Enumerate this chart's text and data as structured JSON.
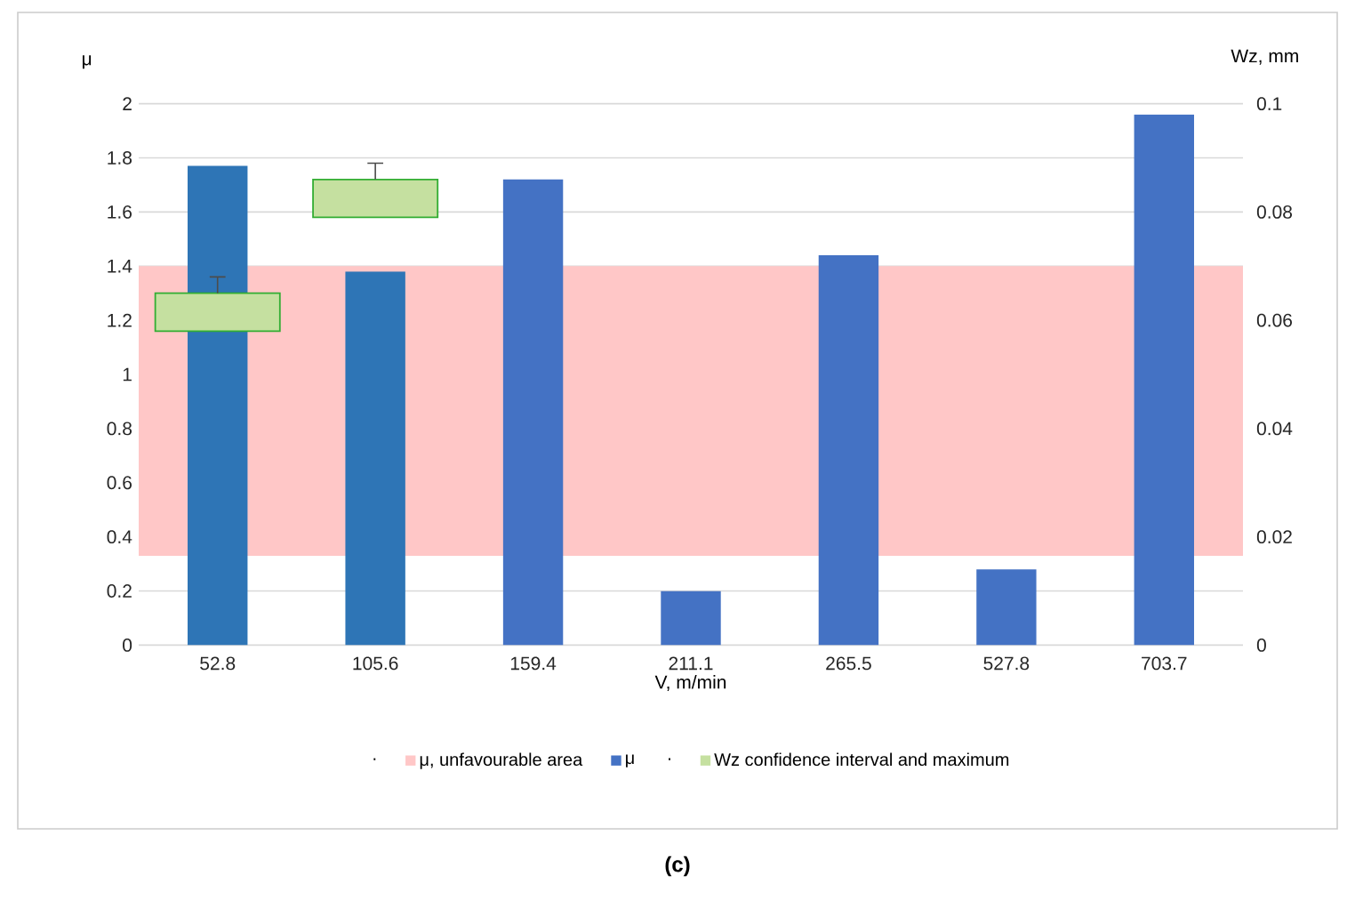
{
  "chart_data": {
    "type": "bar",
    "categories": [
      "52.8",
      "105.6",
      "159.4",
      "211.1",
      "265.5",
      "527.8",
      "703.7"
    ],
    "xlabel": "V, m/min",
    "ylabel": "μ",
    "y2label": "Wz, mm",
    "ylim": [
      0,
      2
    ],
    "yticks": [
      0,
      0.2,
      0.4,
      0.6,
      0.8,
      1,
      1.2,
      1.4,
      1.6,
      1.8,
      2
    ],
    "y2lim": [
      0,
      0.1
    ],
    "y2ticks": [
      0,
      0.02,
      0.04,
      0.06,
      0.08,
      0.1
    ],
    "grid": "y",
    "legend": "bottom",
    "bands": [
      {
        "axis": "y",
        "from": 0.33,
        "to": 1.4,
        "label": "μ, unfavourable area",
        "color": "#ffc7c7"
      }
    ],
    "series": [
      {
        "name": "μ",
        "color": "#4472c4",
        "colors": [
          "#2e75b6",
          "#2e75b6",
          "#4472c4",
          "#4472c4",
          "#4472c4",
          "#4472c4",
          "#4472c4"
        ],
        "values": [
          1.77,
          1.38,
          1.72,
          0.2,
          1.44,
          0.28,
          1.96
        ]
      },
      {
        "name": "Wz confidence interval and maximum",
        "type": "bar",
        "axis": "y2",
        "color": "#c5e0a0",
        "base": [
          0.058,
          0.079,
          null,
          null,
          null,
          null,
          null
        ],
        "values": [
          0.007,
          0.007,
          null,
          null,
          null,
          null,
          null
        ],
        "errors": [
          [
            0.065,
            0.068
          ],
          [
            0.086,
            0.089
          ],
          null,
          null,
          null,
          null,
          null
        ]
      }
    ],
    "annotations": [
      ".",
      ".",
      "(c)"
    ]
  }
}
